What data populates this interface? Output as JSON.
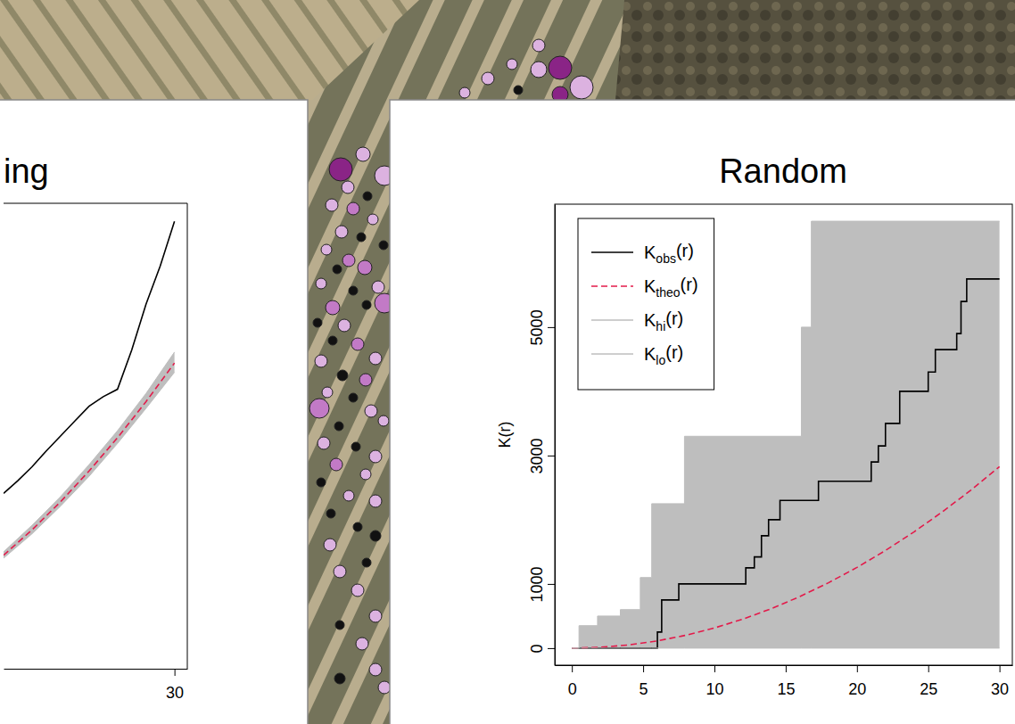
{
  "chart_data": [
    {
      "type": "line",
      "title": "ing",
      "xlim": [
        18,
        30.9
      ],
      "ylim": [
        -50,
        4330
      ],
      "xticks": [
        30
      ],
      "tick_labels": "x",
      "series": [
        {
          "type": "line",
          "color": "#000000",
          "line_style": "solid",
          "x": [
            18,
            19,
            20,
            21,
            22,
            23,
            24,
            25,
            26,
            27,
            28,
            29,
            30
          ],
          "values": [
            1600,
            1720,
            1850,
            2000,
            2140,
            2280,
            2420,
            2510,
            2580,
            2950,
            3380,
            3740,
            4160
          ]
        },
        {
          "type": "line",
          "color": "#e31a4a",
          "line_style": "dashed",
          "x": [
            18,
            20,
            22,
            24,
            26,
            28,
            30
          ],
          "values": [
            1018,
            1257,
            1521,
            1810,
            2124,
            2463,
            2827
          ]
        },
        {
          "type": "area",
          "color": "#bebebe",
          "line_style": "solid",
          "x": [
            18,
            20,
            22,
            24,
            26,
            28,
            30
          ],
          "values": [
            1050,
            1300,
            1570,
            1870,
            2190,
            2540,
            2930
          ]
        },
        {
          "type": "area",
          "color": "#bebebe",
          "line_style": "solid",
          "x": [
            18,
            20,
            22,
            24,
            26,
            28,
            30
          ],
          "values": [
            990,
            1220,
            1480,
            1760,
            2070,
            2400,
            2740
          ]
        }
      ]
    },
    {
      "type": "line",
      "title": "Random",
      "y_label": "K(r)",
      "xlim": [
        -1.2,
        30.9
      ],
      "ylim": [
        -265,
        6915
      ],
      "xticks": [
        0,
        5,
        10,
        15,
        20,
        25,
        30
      ],
      "yticks": [
        0,
        1000,
        3000,
        5000
      ],
      "legend": "top-left",
      "series": [
        {
          "name": "Kobs(r)",
          "type": "step",
          "color": "#000000",
          "line_style": "solid",
          "x": [
            0,
            6,
            6.3,
            7.5,
            12.2,
            12.8,
            13.3,
            13.8,
            14.6,
            17.3,
            21,
            21.5,
            22,
            23,
            25,
            25.5,
            27,
            27.3,
            27.7,
            30
          ],
          "values": [
            0,
            250,
            750,
            1000,
            1250,
            1420,
            1750,
            2000,
            2300,
            2600,
            2900,
            3150,
            3500,
            4000,
            4300,
            4650,
            4900,
            5400,
            5750,
            5750
          ]
        },
        {
          "name": "Ktheo(r)",
          "type": "line",
          "color": "#e31a4a",
          "line_style": "dashed",
          "x": [
            0,
            2,
            4,
            6,
            8,
            10,
            12,
            14,
            16,
            18,
            20,
            22,
            24,
            26,
            28,
            30
          ],
          "values": [
            0,
            13,
            50,
            113,
            201,
            314,
            452,
            616,
            804,
            1018,
            1257,
            1521,
            1810,
            2124,
            2463,
            2827
          ]
        },
        {
          "name": "Khi(r)",
          "type": "area-step",
          "color": "#bebebe",
          "line_style": "solid",
          "x": [
            0,
            0.5,
            1.8,
            3.4,
            4.8,
            5.6,
            7.9,
            16.1,
            16.8,
            30
          ],
          "values": [
            0,
            350,
            500,
            600,
            1100,
            2250,
            3300,
            5000,
            6650,
            6650
          ]
        },
        {
          "name": "Klo(r)",
          "type": "area-step",
          "color": "#bebebe",
          "line_style": "solid",
          "x": [
            0,
            0.5,
            1.8,
            3.4,
            4.8,
            5.6,
            7.9,
            16.1,
            16.8,
            30
          ],
          "values": [
            0,
            0,
            0,
            0,
            0,
            0,
            0,
            0,
            0,
            0
          ]
        }
      ]
    },
    {
      "type": "scatter",
      "tick_labels": false,
      "xlim": [
        0,
        113.8
      ],
      "ylim": [
        0,
        81.2
      ],
      "x": [
        52.1,
        54.7,
        57.4,
        58.1,
        60.4,
        60.4,
        62.8,
        65.2,
        62.8,
        38.2,
        40.7,
        43.1,
        39.0,
        41.2,
        37.2,
        39.6,
        41.8,
        38.3,
        40.5,
        36.6,
        39.1,
        43.0,
        37.8,
        40.9,
        36.0,
        39.6,
        42.4,
        37.3,
        41.1,
        43.1,
        35.6,
        38.6,
        37.3,
        40.1,
        36.0,
        42.1,
        38.4,
        41.0,
        36.7,
        39.6,
        35.8,
        41.6,
        38.0,
        43.0,
        36.3,
        39.9,
        42.1,
        37.7,
        36.0,
        41.0,
        39.1,
        37.1,
        42.1,
        40.1,
        37.0,
        42.1,
        38.1,
        41.1,
        40.1,
        38.1,
        42.1,
        40.6,
        38.1,
        42.1,
        43.1
      ],
      "values": [
        70.8,
        72.4,
        74.0,
        71.1,
        76.1,
        73.4,
        73.6,
        71.4,
        70.6,
        62.2,
        63.9,
        61.5,
        60.2,
        59.2,
        58.2,
        57.8,
        56.6,
        55.2,
        54.6,
        53.2,
        52.0,
        53.7,
        51.0,
        51.2,
        49.4,
        48.6,
        49.0,
        46.7,
        47.0,
        47.2,
        45.0,
        44.7,
        43.0,
        42.6,
        40.7,
        41.0,
        39.1,
        38.6,
        37.2,
        36.6,
        35.4,
        35.1,
        33.4,
        34.0,
        31.5,
        31.1,
        30.0,
        29.1,
        27.1,
        28.0,
        25.6,
        23.6,
        25.0,
        22.1,
        20.1,
        21.1,
        17.1,
        18.1,
        15.0,
        11.1,
        12.1,
        9.0,
        5.1,
        6.1,
        4.1
      ],
      "sizes": [
        6,
        7,
        6,
        5,
        7,
        9,
        13,
        13,
        9,
        13,
        8,
        11,
        7,
        5,
        7,
        7,
        6,
        7,
        5,
        6,
        7,
        5,
        5,
        8,
        6,
        5,
        7,
        8,
        5,
        11,
        5,
        7,
        5,
        7,
        7,
        7,
        6,
        7,
        6,
        5,
        11,
        7,
        5,
        6,
        7,
        5,
        7,
        7,
        5,
        6,
        6,
        5,
        7,
        5,
        7,
        6,
        7,
        5,
        7,
        5,
        7,
        7,
        6,
        7,
        7
      ],
      "colors": [
        "#dcb2e0",
        "#dcb2e0",
        "#dcb2e0",
        "#111111",
        "#dcb2e0",
        "#dcb2e0",
        "#8a2486",
        "#dcb2e0",
        "#8a2486",
        "#8a2486",
        "#dcb2e0",
        "#dcb2e0",
        "#dcb2e0",
        "#111111",
        "#dcb2e0",
        "#c27ac6",
        "#dcb2e0",
        "#dcb2e0",
        "#111111",
        "#dcb2e0",
        "#c27ac6",
        "#111111",
        "#111111",
        "#c27ac6",
        "#dcb2e0",
        "#111111",
        "#dcb2e0",
        "#c27ac6",
        "#111111",
        "#c27ac6",
        "#111111",
        "#dcb2e0",
        "#111111",
        "#c27ac6",
        "#dcb2e0",
        "#dcb2e0",
        "#111111",
        "#c27ac6",
        "#dcb2e0",
        "#111111",
        "#c27ac6",
        "#dcb2e0",
        "#111111",
        "#dcb2e0",
        "#dcb2e0",
        "#111111",
        "#dcb2e0",
        "#c27ac6",
        "#111111",
        "#dcb2e0",
        "#dcb2e0",
        "#111111",
        "#dcb2e0",
        "#111111",
        "#dcb2e0",
        "#111111",
        "#dcb2e0",
        "#111111",
        "#dcb2e0",
        "#111111",
        "#dcb2e0",
        "#dcb2e0",
        "#111111",
        "#dcb2e0",
        "#dcb2e0"
      ]
    }
  ]
}
